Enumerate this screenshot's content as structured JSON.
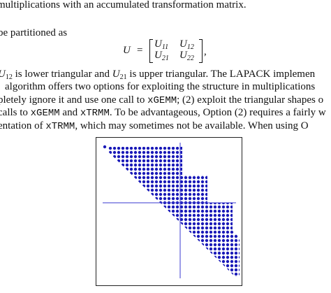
{
  "body": {
    "line1": "multiplications with an accumulated transformation matrix.",
    "line2": "be partitioned as",
    "equation": {
      "lhs": "U",
      "eq": "=",
      "entries": [
        [
          "U",
          "11"
        ],
        [
          "U",
          "12"
        ],
        [
          "U",
          "21"
        ],
        [
          "U",
          "22"
        ]
      ],
      "punct": ","
    },
    "line3": [
      "U",
      "12",
      " is lower triangular and ",
      "U",
      "21",
      " is upper triangular. The LAPACK implemen"
    ],
    "line4": "algorithm offers two options for exploiting the structure in multiplications",
    "line5": [
      "pletely ignore it and use one call to ",
      "xGEMM",
      "; (2) exploit the triangular shapes o"
    ],
    "line6": [
      "calls to ",
      "xGEMM",
      " and ",
      "xTRMM",
      ". To be advantageous, Option (2) requires a fairly w"
    ],
    "line7": [
      "entation of ",
      "xTRMM",
      ", which may sometimes not be available. When using O"
    ]
  }
}
